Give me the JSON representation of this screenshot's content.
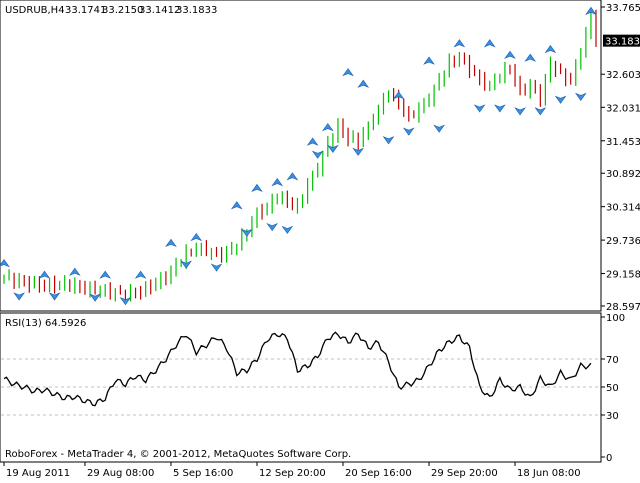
{
  "chart_data": [
    {
      "type": "candlestick",
      "title": "USDRUB,H4",
      "ohlc_readout": [
        "33.1741",
        "33.2150",
        "33.1412",
        "33.1833"
      ],
      "current_price": 33.1833,
      "current_price_label": "33.1833",
      "ylim": [
        28.597,
        33.765
      ],
      "y_ticks": [
        {
          "value": 33.765,
          "label": "33.7650"
        },
        {
          "value": 32.603,
          "label": "32.6030"
        },
        {
          "value": 32.031,
          "label": "32.0310"
        },
        {
          "value": 31.453,
          "label": "31.4530"
        },
        {
          "value": 30.892,
          "label": "30.8920"
        },
        {
          "value": 30.314,
          "label": "30.3140"
        },
        {
          "value": 29.736,
          "label": "29.7360"
        },
        {
          "value": 29.158,
          "label": "29.1580"
        },
        {
          "value": 28.597,
          "label": "28.5970"
        }
      ],
      "close_path": [
        [
          0,
          29.1
        ],
        [
          4,
          29.0
        ],
        [
          8,
          28.95
        ],
        [
          12,
          28.98
        ],
        [
          16,
          28.9
        ],
        [
          20,
          28.85
        ],
        [
          24,
          28.8
        ],
        [
          27,
          28.85
        ],
        [
          30,
          29.0
        ],
        [
          32,
          29.1
        ],
        [
          34,
          29.3
        ],
        [
          36,
          29.5
        ],
        [
          38,
          29.6
        ],
        [
          40,
          29.55
        ],
        [
          42,
          29.48
        ],
        [
          44,
          29.52
        ],
        [
          46,
          29.65
        ],
        [
          48,
          29.9
        ],
        [
          50,
          30.2
        ],
        [
          52,
          30.3
        ],
        [
          54,
          30.5
        ],
        [
          56,
          30.4
        ],
        [
          58,
          30.3
        ],
        [
          60,
          30.7
        ],
        [
          62,
          31.0
        ],
        [
          64,
          31.4
        ],
        [
          66,
          31.7
        ],
        [
          68,
          31.5
        ],
        [
          70,
          31.45
        ],
        [
          72,
          31.7
        ],
        [
          74,
          32.0
        ],
        [
          76,
          32.3
        ],
        [
          78,
          32.1
        ],
        [
          80,
          31.85
        ],
        [
          82,
          32.0
        ],
        [
          84,
          32.2
        ],
        [
          86,
          32.5
        ],
        [
          88,
          32.8
        ],
        [
          90,
          32.9
        ],
        [
          92,
          32.7
        ],
        [
          94,
          32.5
        ],
        [
          96,
          32.4
        ],
        [
          98,
          32.6
        ],
        [
          100,
          32.7
        ],
        [
          102,
          32.3
        ],
        [
          104,
          32.4
        ],
        [
          106,
          32.2
        ],
        [
          108,
          32.8
        ],
        [
          110,
          32.6
        ],
        [
          112,
          32.5
        ],
        [
          114,
          33.0
        ],
        [
          116,
          33.6
        ],
        [
          117,
          33.18
        ]
      ],
      "fractals_up": [
        [
          0,
          29.4
        ],
        [
          8,
          29.2
        ],
        [
          14,
          29.25
        ],
        [
          20,
          29.2
        ],
        [
          27,
          29.2
        ],
        [
          33,
          29.75
        ],
        [
          38,
          29.85
        ],
        [
          46,
          30.4
        ],
        [
          50,
          30.7
        ],
        [
          54,
          30.8
        ],
        [
          57,
          30.9
        ],
        [
          61,
          31.5
        ],
        [
          64,
          31.75
        ],
        [
          68,
          32.7
        ],
        [
          71,
          32.5
        ],
        [
          78,
          32.3
        ],
        [
          84,
          32.9
        ],
        [
          90,
          33.2
        ],
        [
          96,
          33.2
        ],
        [
          100,
          33.0
        ],
        [
          104,
          32.95
        ],
        [
          108,
          33.1
        ],
        [
          116,
          33.76
        ]
      ],
      "fractals_down": [
        [
          3,
          28.7
        ],
        [
          10,
          28.7
        ],
        [
          18,
          28.68
        ],
        [
          24,
          28.62
        ],
        [
          36,
          29.25
        ],
        [
          42,
          29.2
        ],
        [
          48,
          29.8
        ],
        [
          53,
          29.9
        ],
        [
          56,
          29.85
        ],
        [
          62,
          31.15
        ],
        [
          65,
          31.25
        ],
        [
          70,
          31.2
        ],
        [
          76,
          31.4
        ],
        [
          80,
          31.55
        ],
        [
          86,
          31.6
        ],
        [
          94,
          31.95
        ],
        [
          98,
          31.95
        ],
        [
          102,
          31.9
        ],
        [
          106,
          31.9
        ],
        [
          110,
          32.1
        ],
        [
          114,
          32.15
        ]
      ]
    },
    {
      "type": "line",
      "title": "RSI(13) 64.5926",
      "ylim": [
        0,
        100
      ],
      "y_ticks": [
        {
          "value": 100,
          "label": "100"
        },
        {
          "value": 70,
          "label": "70"
        },
        {
          "value": 50,
          "label": "50"
        },
        {
          "value": 30,
          "label": "30"
        },
        {
          "value": 0,
          "label": "0"
        }
      ],
      "levels": [
        70,
        50,
        30
      ],
      "rsi_path": [
        [
          0,
          56
        ],
        [
          2,
          52
        ],
        [
          4,
          50
        ],
        [
          6,
          47
        ],
        [
          8,
          48
        ],
        [
          10,
          45
        ],
        [
          12,
          42
        ],
        [
          14,
          43
        ],
        [
          16,
          40
        ],
        [
          18,
          38
        ],
        [
          20,
          42
        ],
        [
          22,
          55
        ],
        [
          24,
          52
        ],
        [
          26,
          58
        ],
        [
          28,
          55
        ],
        [
          30,
          62
        ],
        [
          32,
          70
        ],
        [
          34,
          80
        ],
        [
          36,
          88
        ],
        [
          38,
          75
        ],
        [
          40,
          80
        ],
        [
          42,
          86
        ],
        [
          44,
          78
        ],
        [
          46,
          60
        ],
        [
          48,
          62
        ],
        [
          50,
          70
        ],
        [
          52,
          84
        ],
        [
          54,
          88
        ],
        [
          56,
          85
        ],
        [
          58,
          62
        ],
        [
          60,
          65
        ],
        [
          62,
          72
        ],
        [
          64,
          85
        ],
        [
          66,
          88
        ],
        [
          68,
          82
        ],
        [
          70,
          88
        ],
        [
          72,
          78
        ],
        [
          74,
          82
        ],
        [
          76,
          68
        ],
        [
          78,
          50
        ],
        [
          80,
          52
        ],
        [
          82,
          55
        ],
        [
          84,
          65
        ],
        [
          86,
          76
        ],
        [
          88,
          82
        ],
        [
          90,
          86
        ],
        [
          92,
          78
        ],
        [
          94,
          50
        ],
        [
          96,
          42
        ],
        [
          98,
          55
        ],
        [
          100,
          48
        ],
        [
          102,
          50
        ],
        [
          104,
          42
        ],
        [
          106,
          56
        ],
        [
          108,
          50
        ],
        [
          110,
          60
        ],
        [
          112,
          55
        ],
        [
          114,
          65
        ],
        [
          116,
          65
        ]
      ],
      "x_ticks": [
        {
          "index": 0,
          "label": "19 Aug 2011"
        },
        {
          "index": 16,
          "label": "29 Aug 08:00"
        },
        {
          "index": 33,
          "label": "5 Sep 16:00"
        },
        {
          "index": 50,
          "label": "12 Sep 20:00"
        },
        {
          "index": 67,
          "label": "20 Sep 16:00"
        },
        {
          "index": 84,
          "label": "29 Sep 20:00"
        },
        {
          "index": 101,
          "label": "18 Jun 08:00"
        }
      ]
    }
  ],
  "footer": {
    "copyright": "RoboForex - MetaTrader 4, © 2001-2012, MetaQuotes Software Corp."
  },
  "colors": {
    "bull": "#00c000",
    "bear": "#c00000",
    "fractal_fill": "#3b8fe0",
    "grid": "#c0c0c0",
    "price_label_bg": "#000000",
    "price_label_text": "#ffffff"
  }
}
